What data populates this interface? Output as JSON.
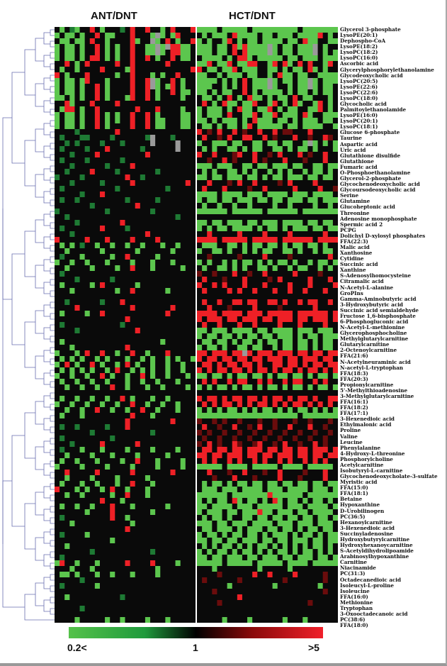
{
  "chart_data": {
    "type": "heatmap",
    "groups": [
      "ANT/DNT",
      "HCT/DNT"
    ],
    "colorscale": {
      "min_label": "0.2<",
      "mid_label": "1",
      "max_label": ">5",
      "low_color": "#55c24a",
      "mid_color": "#000000",
      "high_color": "#f0202a",
      "missing_color": "#9a9a9a"
    },
    "value_codes": {
      "G": 0.2,
      "g": 0.5,
      "k": 1,
      "r": 2,
      "R": 5,
      "n": null
    },
    "rows": [
      {
        "label": "Glycerol 3-phosphate",
        "ant": "kGkgGkkRkGkkkgkRkkRkkGkRkkkR",
        "hct": "GGGGkGGGGGkGGGGGGGGGkGGGGGGG"
      },
      {
        "label": "LysoPE(20:1)",
        "ant": "GkGGkGkkRkGGkkkRkkkGnGkGRkkk",
        "hct": "kGkGGGkRGGGGkGGkGGGkGGGGRkGk"
      },
      {
        "label": "Dephospho-CoA",
        "ant": "kGGkGGkRkkGkkkkRGkknGkRkGkkR",
        "hct": "GkGkkGRkGkGGkGGGGkGGkRGGkkGG"
      },
      {
        "label": "LysoPE(18:2)",
        "ant": "GkGGkGkkRkGkGkkRkkGGnGnRRGGk",
        "hct": "GGGkGGkRGRGGGGnGkGGkGGGnkGkk"
      },
      {
        "label": "LysoPC(18:2)",
        "ant": "GkGGkGkkRkGkGkkRkkGGnGkRRGGk",
        "hct": "GGGkGGkRkRGGGGnGkGGkGGGnkGkG"
      },
      {
        "label": "LysoPC(16:0)",
        "ant": "GkGGkGkRRkGkGkkRkkRkGkkRkGGk",
        "hct": "kGGGGkGkRRGkGGGGGkGGkGGGkGGG"
      },
      {
        "label": "Ascorbic acid",
        "ant": "kkRkGkRkkkkkRkkRkkkkkkRkkkkk",
        "hct": "GGRkGGRkGGRRkkGRkRGkRkRkkGRk"
      },
      {
        "label": "Glycerylphosphorylethanolamine",
        "ant": "kGkkGkkkkRkkkkGRkkkkkkkkkkkR",
        "hct": "RkGGkGGRkGGGkkGGkGkGGkRGkGkk"
      },
      {
        "label": "Glycodeoxycholic acid",
        "ant": "RkGkkkRkkkkkGkkRkkkGkGkkRkkk",
        "hct": "GGkkGkGGGkGGkkGkRGGkGGkkGGGG"
      },
      {
        "label": "LysoPC(20:5)",
        "ant": "GkGGkGRkkkGkkkkRkkRnGkkRkGkk",
        "hct": "GGGGkGkGkRkGGGnGkGGkGGnGkGGG"
      },
      {
        "label": "LysoPE(22:6)",
        "ant": "GkGGkGkkRkGkkkkRkkRnGkGRkGkk",
        "hct": "GGGkkGkGkRkGGGnGkkGkGGnGkGGk"
      },
      {
        "label": "LysoPC(22:6)",
        "ant": "GkGGkGkkRkGkkkkRkkRkGkkRkGGk",
        "hct": "GGkGkGGkkRkGkGGGGkGkGGkGkGGk"
      },
      {
        "label": "LysoPC(18:0)",
        "ant": "GGkGkGkkRkGkkkGRkkRkGkkkkGkk",
        "hct": "kGGkGkRkGkRGGkGkGGkRkGGkkkGk"
      },
      {
        "label": "Glycocholic acid",
        "ant": "kkRGkkkRkkkkRkkkkkkkkkkkkkkk",
        "hct": "kRkGkRGGkGGRkkGRkGkRGkkGRkGk"
      },
      {
        "label": "Palmitoylethanolamide",
        "ant": "kGRRkGkkRkkkkkkkRkkkRkkkkGkk",
        "hct": "GkGGGkGkRGGkGGRkGkGGkkGGRkGk"
      },
      {
        "label": "LysoPE(16:0)",
        "ant": "GkGGkGkkRkGkGkkRkkRkGkkkkGGk",
        "hct": "GkGGGkRkkGGRkGGRkGGGkRGkkGGG"
      },
      {
        "label": "LysoPC(20:1)",
        "ant": "GkGGkGkkRkGkGkkRkkRkGGkkkGGk",
        "hct": "GGkGkGGGkGkRGGGkGGkGkGGGkGGk"
      },
      {
        "label": "LysoPC(18:1)",
        "ant": "GkGGkGkkRkGkkkkRkkRkGGkkkGGk",
        "hct": "kGGkGkGGkGRkGGGGGkGGkGGGGkkG"
      },
      {
        "label": "Glucose 6-phosphate",
        "ant": "kkkkgkkkkkkkRkkkkkkkkkkkkkkk",
        "hct": "RkrkRkkRkrkkRkkRkrrkkkRkkkkk"
      },
      {
        "label": "Taurine",
        "ant": "kgkkkggkkkkgkkkkkkgnkkkgkkkk",
        "hct": "kRkkrkRkkRRkkRkrkkkRkkrkkRrk"
      },
      {
        "label": "Aspartic acid",
        "ant": "kkgkgkkkkgkkkgkkkkknkkkknkkk",
        "hct": "GkkGGGkGGkkGGkGGkGGkkGnGkGkG"
      },
      {
        "label": "Uric acid",
        "ant": "kgkkkkgkkkRkkkkkkgkkkkkknkkk",
        "hct": "kGkGkkGGkGkGGkkGGkGkGGkGkkkG"
      },
      {
        "label": "Glutathione disulfide",
        "ant": "kkkgkkkkRkkkkkkkkkRkkkkkkkkk",
        "hct": "RkkRkkkrRkkRkkrkRkkkRkrkkRkk"
      },
      {
        "label": "Glutathione",
        "ant": "kgkkkkgkkkkkkgkkkkkkkkkkkkkk",
        "hct": "kkrkkRkrkkkRkrkkkRkkkrkkkRkk"
      },
      {
        "label": "Fumaric acid",
        "ant": "kkkgkkkkkkgkkkkRkkkkkkkkkkkk",
        "hct": "GGGkGGGkkGGkGGkGGGkGGkkGGkGG"
      },
      {
        "label": "O-Phosphoethanolamine",
        "ant": "kkgkkkkRkkkkgkkkkkkkgkkkkkkk",
        "hct": "kGkGkkGGkGkGkkGkGkGkkGkGGkGk"
      },
      {
        "label": "Glycerol-2-phosphate",
        "ant": "gkkkkgkkkkkkkkRkkgkkkkkkkkkk",
        "hct": "GGkGGkGGGkGGkGkGGkGGGkGGkGGk"
      },
      {
        "label": "Glycochenodeoxycholic acid",
        "ant": "kkkgkkkkkgkkkkkRkkkkkkkkkkRk",
        "hct": "kkRkkkrkRkkRkkkkrkRkkkkRkkkk"
      },
      {
        "label": "Glycoursodeoxycholic acid",
        "ant": "kgkkkkkkkkkkgkkkkkkkkkgkkkkk",
        "hct": "kRkkkRkkkkrkkRkkkkkRkkkkRkkr"
      },
      {
        "label": "Serine",
        "ant": "kkkkkgkkkRkkkkkkkkkkkkkkkkkk",
        "hct": "GGGGkGGGGkGGGkGGGGkGGGkGGGGk"
      },
      {
        "label": "Glutamine",
        "ant": "kgkkgkkkkkkkkkgkkkkkgkkkkkkk",
        "hct": "GkGGkGGkGGGkGGkGGkGGGkGGkGGG"
      },
      {
        "label": "Glucoheptonic acid",
        "ant": "kkkkkkkgkkkkkkkkRkkkkkkkkkkk",
        "hct": "kGkkGkkGkkGkkkkGkkGkkkkGkkGk"
      },
      {
        "label": "Threonine",
        "ant": "gkkkkkkkkkgkkkkkkkkgkkkkkkkk",
        "hct": "GGGGGGkGGGGGGkGGGGGGkGGGGGGG"
      },
      {
        "label": "Adenosine monophosphate",
        "ant": "kkgkkkkkkkkkkkkkkkkkkkkkgkkk",
        "hct": "kkkkkkkkkkkkkkkkkkkkkkkkkkkk"
      },
      {
        "label": "Spermic acid 2",
        "ant": "kkkkgkkkkkkkkRkkkkkkkkkkkkkk",
        "hct": "GGkGGkGGGkGGkGGGkGGGGkGGkGGk"
      },
      {
        "label": "PCPG",
        "ant": "kgkkkkkkkRkkkkgkkkkkkkkkkkkk",
        "hct": "GkGkGGkGGGGkGkGGkGkGGGkGGkGG"
      },
      {
        "label": "Dolichyl D-xylosyl phosphates",
        "ant": "kkkgkkkkkkkkkkkkkkRkkkkkkkkk",
        "hct": "kkRkkkkkRkkkkRkkkkRkkkkkkRkk"
      },
      {
        "label": "FFA(22:3)",
        "ant": "RkkkkkRkkkRkkkkRkkkkRkkkkkkk",
        "hct": "RRRRkRRRRRkRRRRRkRRRRRRkRRRR"
      },
      {
        "label": "Malic acid",
        "ant": "kGkGkgkkGkkGkkGkkGkkkGkkGkkk",
        "hct": "kGGGkkGGkGkGGkGGkGkGGkGGkGkk"
      },
      {
        "label": "Xanthosine",
        "ant": "kkGkkkkkkGkkkkkkGkkkkkkGkkkk",
        "hct": "GkkGGkGkkGkGkGGkkGGkGkkGkGGk"
      },
      {
        "label": "Cytidine",
        "ant": "kgkkkGkkkkkGkkRkkkkkGkkkkkkk",
        "hct": "kkrkkkkkrkkkkRkkkkrkkkkkkkRk"
      },
      {
        "label": "Succinic acid",
        "ant": "GkkGkkGkkkGkkkkGkkkGkkkGkkkk",
        "hct": "GkGkkGkGkGGkGkGkGGkGkkGkGGkG"
      },
      {
        "label": "Xanthine",
        "ant": "kkGkkkkGkkkkGkkRkkkGkkkkkGkk",
        "hct": "kGkkGGkGkGkkGGkGkkGkGGkkGkGk"
      },
      {
        "label": "S-Adenosylhomocysteine",
        "ant": "kgkkkkkkkkkkkkkkkkkkkkkkkkkk",
        "hct": "rkkrkkkRkkrkkRkkkkkRkkkkrkkk"
      },
      {
        "label": "Citramalic acid",
        "ant": "kkkkgkkkkkkgkkkkkkkkkkkkkkkk",
        "hct": "kRkkkrkkkRkkkkrkRkkkkkRkkkRk"
      },
      {
        "label": "N-Acetyl-L-alanine",
        "ant": "kGkkkkkGkRkkkkkkGkkkkkkkkkkk",
        "hct": "RkkRkRkkkRkkkRkkkkRkkkRkkkkR"
      },
      {
        "label": "GroPIns",
        "ant": "kkkGkkkkkkkkGkkRkkkkkkGkkkkk",
        "hct": "kRkkkkRkRkkRkkkRkkRkkRkkkRkk"
      },
      {
        "label": "Gamma-Aminobutyric acid",
        "ant": "kkkkkkkkkkkkkkkkkkkkkkkkkkkk",
        "hct": "kkkkkkkkkkkkkkkkkkkkkkkkkkkk"
      },
      {
        "label": "3-Hydroxybutyric acid",
        "ant": "kkgkkkkkkgkkkRkkkkkkkkkkkkkk",
        "hct": "kRkkRkkRRkRRkkRRkRkkRkRRkkRk"
      },
      {
        "label": "Succinic acid semialdehyde",
        "ant": "kkkkRkkkkkkkkkkRkkkkkkkRkkkk",
        "hct": "kkRkkkrkkkkRkkkkrkkkkkkRkkkk"
      },
      {
        "label": "Fructose 1,6-bisphosphate",
        "ant": "kGkkkkGkkRkkkkkkkkkkkkRkkkkk",
        "hct": "RRRRkRRRRkRRRkRRRRRkRRRRRRkR"
      },
      {
        "label": "6-Phosphogluconic acid",
        "ant": "kkkkkkkkkkkkkkRkkkkkkkkkkkkk",
        "hct": "RkRRRkRRkRRRkRRkRRRkRRkRRRkR"
      },
      {
        "label": "N-Acetyl-L-methionine",
        "ant": "kgkkkkkkkkkkkgkkkkkkkkkkkkkk",
        "hct": "kRkkRkkkRkkRkkkkRkkkRkkkkRkk"
      },
      {
        "label": "Glycerophosphocholine",
        "ant": "kkkkgkkkkkkkkkkkRkkkkkkkkkkk",
        "hct": "GGkGGGkGGGGkGGkGGGGkGGGkGGGk"
      },
      {
        "label": "Methylglutarylcarnitine",
        "ant": "kkkkkkkkkkkkkkkkkkkkkkkkkkkk",
        "hct": "GkGGkGGkGkGGkGGkGGGkGkGGkGGG"
      },
      {
        "label": "Glutarylcarnitine",
        "ant": "kGkkkkkkkkkkkkkkkkkkkGkkkkkk",
        "hct": "kGGkGGkGkGGkGkGGkGGkGGkGkGGk"
      },
      {
        "label": "2-Octenoylcarnitine",
        "ant": "kkkGkkkkkkkkkkRkkkkkkkkkkkkk",
        "hct": "GkGGkGkkGGkGGkkGkGGkGGkGkGGk"
      },
      {
        "label": "FFA(21:6)",
        "ant": "GkkkGkRkkRkkGkkRkkGkkkRkkkkk",
        "hct": "RRkRRRkRRnRkRRRkRRRkRRkRRkRR"
      },
      {
        "label": "N-Acetylneuraminic acid",
        "ant": "kGkGkGkkGkGkkkGkkGkGkkGkGkkG",
        "hct": "RkRRkRRkRRkRRkRRRkRRkRRRkRRk"
      },
      {
        "label": "N-acetyl-L-tryptophan",
        "ant": "GkRkGkkRkGkkGkRkGkkGkkGkkGkk",
        "hct": "kRRkRkRRkRRkRkkRRkRRkRkRRkRR"
      },
      {
        "label": "FFA(18:3)",
        "ant": "kGkGkGkGkkGkRkkGkGkGkkGkkGkk",
        "hct": "RkRkRRkRRkRkRRkRkRRkRkRRkRkR"
      },
      {
        "label": "FFA(20:3)",
        "ant": "GkkGkkGkkRkGkkGkkRkGkkGkkkGk",
        "hct": "GGkGGkGkGGkGGkGkGGkGGkGkGGkG"
      },
      {
        "label": "Propionylcarnitine",
        "ant": "kGkkGkkGkkGkkkGkkGkkGkkkGkkk",
        "hct": "kRkRkkRkRRkkRkRkkRkRRkkRkRkk"
      },
      {
        "label": "5'-Methylthioadenosine",
        "ant": "kkGkkGkkGkkRkkGkkkGkkGkkkkGk",
        "hct": "GkGkGGkGkGGkGkGGkGkGGkGkGGkG"
      },
      {
        "label": "3-Methylglutarylcarnitine",
        "ant": "kkkkkkkkkkkkkkkkkkkkkkkkkkkk",
        "hct": "kkkkkkkkkkkkkkkkkkkkkkkkkkkk"
      },
      {
        "label": "FFA(16:1)",
        "ant": "kGkkGkkGkkGkkRkGkkkGkkGkkkkk",
        "hct": "RkRRkRkRRkRRkRkRRkRkRRkRkkRR"
      },
      {
        "label": "FFA(18:2)",
        "ant": "GkkGkkGkkGkkGkkRkkGkkGkkGkkk",
        "hct": "kRkRkRRkRkRkRRkRkRkRRkRkRkRk"
      },
      {
        "label": "FFA(17:1)",
        "ant": "kkGkkGkkRkkGkkGkkRkkGkkkGkkk",
        "hct": "GkGkGkGGkGkGkGGkGkGkGGkGkGkG"
      },
      {
        "label": "3-Hexenedioic acid",
        "ant": "kGkkkGkkkkkkkkkRkkkGkkkkkkkk",
        "hct": "GGGGGGGGGGGGGGGGGGGGkGGGGGGG"
      },
      {
        "label": "Ethylmalonic acid",
        "ant": "kkkkkkkkkkkkkkRkkkkkkkkRkkkk",
        "hct": "rkkrkrkkrkkkrkkrkkkrkkrkkkrk"
      },
      {
        "label": "Proline",
        "ant": "kgkkgkkkkkgkkkRkkkkkkkkkkkkk",
        "hct": "kRkkrkkRkkrkRkkrkkRkkkRkkrkk"
      },
      {
        "label": "Valine",
        "ant": "kkkkkkkgkkkkkkkkkkkgkkkkkkkk",
        "hct": "rkrkkrkkrkkrkkrkkrkkrkkrkkrk"
      },
      {
        "label": "Leucine",
        "ant": "kgkkkkkkkkkgkkkkkkkkkkkkkkkk",
        "hct": "krkkrkkrkkrkkrkkrkkrkkrkkrkk"
      },
      {
        "label": "Phenylalanine",
        "ant": "kkkgkkkkkRkkkkkkRkkkkkkkkkkk",
        "hct": "rkRkrkkRrkkrRkkrkRkkrkkRkrkk"
      },
      {
        "label": "4-Hydroxy-L-threonine",
        "ant": "kgkkkGkkkGkkkkGkkkkGkkkkGkkk",
        "hct": "kRRkRRkRRkRRRkRRkRRkRRkRRRkR"
      },
      {
        "label": "Phosphorylcholine",
        "ant": "kkGkkkkGkkkGkkkkGkkkkkGkkkkk",
        "hct": "RRkRRkRRRkRRkRRkRRRkRRkRRkRR"
      },
      {
        "label": "Acetylcarnitine",
        "ant": "kGkkGkkkGkkkkGkkRkkkGkkkkGkk",
        "hct": "kRkRkkRkRkkRkRkkRkRkkRkRkRkk"
      },
      {
        "label": "Isobutyryl-L-carnitine",
        "ant": "GkkkkGkkkkGkkkkGkkkkGkkkkGkk",
        "hct": "GGGGGkGGGGkGGGGGkGGGGkGGGGGk"
      },
      {
        "label": "Glycochenodeoxycholate-3-sulfate",
        "ant": "kkRkkkkkRkkkkkkRkkkkkkkRkkkk",
        "hct": "kkRkkkrkkRkkkrkkRkkkkrkkkRkk"
      },
      {
        "label": "Myristic acid",
        "ant": "kkGkkkkGkkkkGkkkkkGkkkkkkkkk",
        "hct": "kkkrkkkRkkkrkkkkRkkkrkkkkRkk"
      },
      {
        "label": "FFA(15:0)",
        "ant": "kGkkkGkkGkkkGkkRkkkGkkkkkkkk",
        "hct": "kGkGGkGkGGkGGkGGkGGkGGkGGkGG"
      },
      {
        "label": "FFA(18:1)",
        "ant": "RkkkGkGkkGkRkkGkkkGkkkkkkkkk",
        "hct": "kGGGkGGGkGGGGkGGGkGGGGkGGGkG"
      },
      {
        "label": "Betaine",
        "ant": "kkGkkGkkkkkGkkRkkkGkkkkkkkkk",
        "hct": "GGGGGGkGGGGGGGRGGGGGGkGGGGGG"
      },
      {
        "label": "Hypoxanthine",
        "ant": "kkkkkkkkkRkkkGkkkkkkkkkkkkkk",
        "hct": "GkGkGGkRGkGGkGkRGkGGkGkGGkGk"
      },
      {
        "label": "D-Urobilinogen",
        "ant": "kGkkGkkGkkkRkkkGkkkkkkGkkkkk",
        "hct": "GGkGGGGkGGGkGGGGGkGGGkGGGGkG"
      },
      {
        "label": "PC(36:5)",
        "ant": "kkkkkkGkkkkRkkkkkkkGkkkkkkkk",
        "hct": "GkGGGkGGkGGGRGGkGGGkGGkGGGGk"
      },
      {
        "label": "Hexanoylcarnitine",
        "ant": "kgkkkkkkkkkRkkGkkkkkkkkkkkkk",
        "hct": "kGkGGkGkkGGkGGkGGkGGkGGkGGkG"
      },
      {
        "label": "3-Hexenedioic acid",
        "ant": "kkkGkkkkkkkkkkkGkkkkkkkkkkkk",
        "hct": "GGGkGGkGGGkGGGGkGGGkGGGkGGGk"
      },
      {
        "label": "Succinyladenosine",
        "ant": "kkkkkkkkkkkkkkRkkkkkkkkkkkkk",
        "hct": "kGGkGGGkGkGGGkGGkGGkGkGGkGGk"
      },
      {
        "label": "Hydroxybutyrylcarnitine",
        "ant": "kgkkkkGkkkkkkkkkkkkkkkkkkkkk",
        "hct": "GkGGkGkGGkGGkGkGGGkGkGGkGkGG"
      },
      {
        "label": "Hydroxyhexanoycarnitine",
        "ant": "kkkkkkkkkkkGkkkkkkkkkkkkkkkk",
        "hct": "GGkGGkGGkGGGkGGkGGkGGGkGGkGG"
      },
      {
        "label": "S-Acetyldihydrolipoamide",
        "ant": "kkGkkkkkkkkkkkkkkkkkkkkkkkkk",
        "hct": "kGkGkGGkGkGkGGkGkGkGkGkGGkGk"
      },
      {
        "label": "Arabinosylhypoxanthine",
        "ant": "kkkkkkkgkkkkkkkkkkkgkkkkkkkk",
        "hct": "GkGkGGkGkGGkGkGkGGkGkGGkGkGk"
      },
      {
        "label": "Carnitine",
        "ant": "kgkkkkkkkkkkkkkkkkkkkkkkkkkk",
        "hct": "GGkGGkGGGkGGkGGGkGGkGGGkGGkG"
      },
      {
        "label": "Niacinamide",
        "ant": "GRkkGkkkGkkkkkRkkkkRkkkkGkkk",
        "hct": "GGGGGkGGGGGkGGGGGkGGGGkGGGGG"
      },
      {
        "label": "PC(31:3)",
        "ant": "kkkGkkkGkkkkkkkkkkkkGkkkkkkk",
        "hct": "kkkGkkkkkkkkGkkkkkGkkkkkkkkk"
      },
      {
        "label": "Octadecanedioic acid",
        "ant": "kGGkGkkkGkkGkkkGkkkkGkkkkkkk",
        "hct": "kkkkrkkkkkkRkkRkkkkRkkkkkrkk"
      },
      {
        "label": "Isoleucyl-L-proline",
        "ant": "kkkkkgkkkkkkkkkkkkkkkkkkkkkk",
        "hct": "krkkkkkkrkkkkkkkkrkkkkkkkrkk"
      },
      {
        "label": "Isoleucine",
        "ant": "kgkkkkkkGkkkkkkkkkkkkkkkkkkk",
        "hct": "kkkkkkGkkkkkkkkGkkkkkkkkGkkk"
      },
      {
        "label": "FFA(16:0)",
        "ant": "kkkkkkkkkkkkkkkkkkkkkkkkkkkk",
        "hct": "kkkrkkkkkkkkkkkkkkkkkkkkkrkk"
      },
      {
        "label": "Methionine",
        "ant": "kkGkkkkkkkkkkgkkkkkkkkkkkkkk",
        "hct": "kkkkkkkkRkkkkkkkkkkkkkkkkkkk"
      },
      {
        "label": "Tryptophan",
        "ant": "kkkkkkkkkkkkkkkkkkkkkkkkkkkk",
        "hct": "kkkkrkkkkkkkkkkkkkkkkkrkkkkk"
      },
      {
        "label": "3-Oxooctadecanoic acid",
        "ant": "kkkkkgkkkkkkkkkkkkkkkkkkkkkk",
        "hct": "kkkkkkkkkkkkkkkkkkkkkkkkkkkk"
      },
      {
        "label": "PC(38:6)",
        "ant": "kkkkkkkkkkkkkkkkkkkkkkkkkkkk",
        "hct": "kkkkkkkkkkkkkkkkkkkkkkkkkkkk"
      },
      {
        "label": "FFA(18:0)",
        "ant": "kkkkGkkkkkGkkGkkkkGkkkGkkkkk",
        "hct": "kkkkkGkkkkGkkkkkkGkkkGkkkkkk"
      }
    ]
  }
}
